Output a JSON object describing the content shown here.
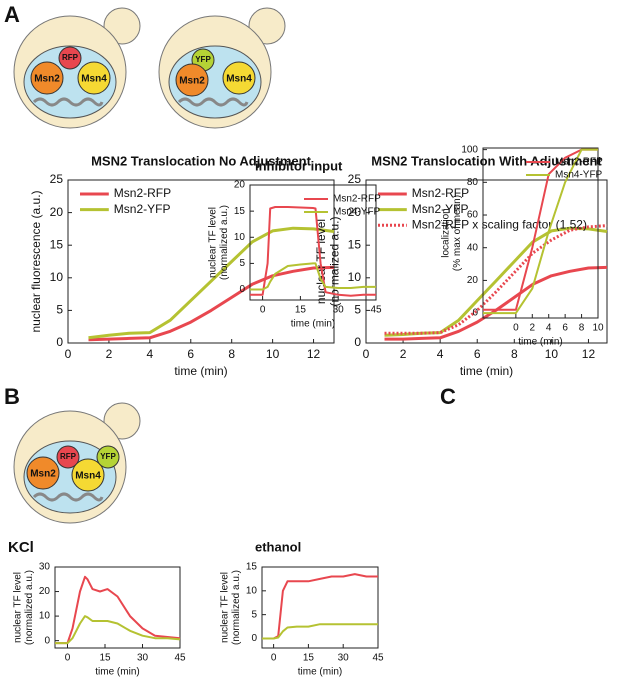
{
  "panels": [
    "A",
    "B",
    "C"
  ],
  "cells": [
    {
      "labels": [
        "RFP",
        "Msn2",
        "Msn4"
      ]
    },
    {
      "labels": [
        "YFP",
        "Msn2",
        "Msn4"
      ]
    },
    {
      "labels": [
        "RFP",
        "Msn2",
        "Msn4",
        "YFP"
      ]
    }
  ],
  "chart_data": [
    {
      "type": "line",
      "title": "MSN2 Translocation No Adjustment",
      "xlabel": "time (min)",
      "ylabel": [
        "nuclear fluorescence (a.u.)"
      ],
      "x": [
        1,
        2,
        3,
        4,
        5,
        6,
        7,
        8,
        9,
        10,
        11,
        12,
        13
      ],
      "xlim": [
        0,
        13
      ],
      "xticks": [
        0,
        2,
        4,
        6,
        8,
        10,
        12
      ],
      "ylim": [
        0,
        25
      ],
      "yticks": [
        0,
        5,
        10,
        15,
        20,
        25
      ],
      "legend": "upper left",
      "series": [
        {
          "name": "Msn2-RFP",
          "color": "#e8474f",
          "style": "solid",
          "values": [
            0.5,
            0.6,
            0.7,
            0.8,
            1.8,
            3.2,
            5,
            7,
            9,
            10.3,
            11,
            11.5,
            11.6
          ]
        },
        {
          "name": "Msn2-YFP",
          "color": "#b5c232",
          "style": "solid",
          "values": [
            0.8,
            1.2,
            1.5,
            1.6,
            3.5,
            6.5,
            9.5,
            12.5,
            15.5,
            17.2,
            17.6,
            17.5,
            17.1
          ]
        }
      ]
    },
    {
      "type": "line",
      "title": "MSN2 Translocation With Adjustment",
      "xlabel": "time (min)",
      "ylabel": [
        "nuclear TF level",
        "(normalized a.u.)"
      ],
      "x": [
        1,
        2,
        3,
        4,
        5,
        6,
        7,
        8,
        9,
        10,
        11,
        12,
        13
      ],
      "xlim": [
        0,
        13
      ],
      "xticks": [
        0,
        2,
        4,
        6,
        8,
        10,
        12
      ],
      "ylim": [
        0,
        25
      ],
      "yticks": [
        0,
        5,
        10,
        15,
        20,
        25
      ],
      "legend": "upper left",
      "series": [
        {
          "name": "Msn2-RFP",
          "color": "#e8474f",
          "style": "solid",
          "values": [
            0.6,
            0.6,
            0.7,
            0.8,
            1.8,
            3.2,
            5,
            7,
            9,
            10.3,
            11,
            11.5,
            11.6
          ]
        },
        {
          "name": "Msn2-YFP",
          "color": "#b5c232",
          "style": "solid",
          "values": [
            1.2,
            1.3,
            1.5,
            1.6,
            3.5,
            6.5,
            9.5,
            12.5,
            15.5,
            17.2,
            17.6,
            17.5,
            17.1
          ]
        },
        {
          "name": "Msn2-RFP x scaling factor (1.52)",
          "color": "#e8474f",
          "style": "dotted",
          "values": [
            1.5,
            1.5,
            1.5,
            1.6,
            2.8,
            5,
            7.8,
            10.8,
            13.8,
            15.8,
            17.3,
            17.8,
            18
          ]
        }
      ]
    },
    {
      "type": "line",
      "title": "inhibitor input",
      "xlabel": "time (min)",
      "ylabel": [
        "nuclear TF level",
        "(normalized a.u.)"
      ],
      "x": [
        -5,
        0,
        2,
        3,
        5,
        10,
        15,
        20,
        21,
        23,
        25,
        30,
        35,
        40,
        45
      ],
      "xlim": [
        -5,
        45
      ],
      "xticks": [
        0,
        15,
        30,
        45
      ],
      "ylim": [
        -2,
        20
      ],
      "yticks": [
        0,
        5,
        10,
        15,
        20
      ],
      "legend": "upper right",
      "series": [
        {
          "name": "Msn2-RFP",
          "color": "#e8474f",
          "style": "solid",
          "values": [
            -1,
            -1,
            5,
            15.5,
            15.8,
            15.8,
            15.7,
            15.6,
            15.5,
            5,
            -0.5,
            -1,
            -1.2,
            -1,
            -1
          ]
        },
        {
          "name": "Msn4-YFP",
          "color": "#b5c232",
          "style": "solid",
          "values": [
            0,
            0,
            0.5,
            1.5,
            3,
            4.5,
            4.8,
            5,
            5,
            2,
            0.5,
            0.3,
            0.3,
            0.5,
            0.5
          ]
        }
      ]
    },
    {
      "type": "line",
      "xlabel": "time (min)",
      "ylabel": [
        "localization",
        "(% max of mean)"
      ],
      "x": [
        -4,
        0,
        2,
        4,
        6,
        8,
        10
      ],
      "xlim": [
        -4,
        10
      ],
      "xticks": [
        0,
        2,
        4,
        6,
        8,
        10
      ],
      "ylim": [
        -3,
        101
      ],
      "yticks": [
        0,
        20,
        40,
        60,
        80,
        100
      ],
      "legend": "upper right",
      "series": [
        {
          "name": "Msn2-RFP",
          "color": "#e8474f",
          "style": "solid",
          "values": [
            2,
            2,
            40,
            85,
            95,
            100,
            100
          ]
        },
        {
          "name": "Msn4-YFP",
          "color": "#b5c232",
          "style": "solid",
          "values": [
            0,
            0,
            15,
            50,
            80,
            100,
            100
          ]
        }
      ]
    },
    {
      "type": "line",
      "title": "KCl",
      "xlabel": "time (min)",
      "ylabel": [
        "nuclear TF level",
        "(normalized a.u.)"
      ],
      "x": [
        -5,
        0,
        2,
        5,
        7,
        8,
        10,
        13,
        16,
        20,
        25,
        30,
        35,
        40,
        45
      ],
      "xlim": [
        -5,
        45
      ],
      "xticks": [
        0,
        15,
        30,
        45
      ],
      "ylim": [
        -3,
        30
      ],
      "yticks": [
        0,
        10,
        20,
        30
      ],
      "series": [
        {
          "color": "#e8474f",
          "style": "solid",
          "values": [
            -1,
            -1,
            5,
            20,
            26,
            25,
            21,
            20,
            21,
            18,
            10,
            5,
            2,
            1.5,
            1
          ]
        },
        {
          "color": "#b5c232",
          "style": "solid",
          "values": [
            -1,
            -1,
            1,
            7,
            10,
            9.5,
            8,
            8,
            8,
            7,
            4,
            2,
            1,
            1,
            0.5
          ]
        }
      ]
    },
    {
      "type": "line",
      "title": "ethanol",
      "xlabel": "time (min)",
      "ylabel": [
        "nuclear TF level",
        "(normalized a.u.)"
      ],
      "x": [
        -5,
        0,
        2,
        4,
        6,
        10,
        15,
        20,
        25,
        30,
        35,
        40,
        45
      ],
      "xlim": [
        -5,
        45
      ],
      "xticks": [
        0,
        15,
        30,
        45
      ],
      "ylim": [
        -2,
        15
      ],
      "yticks": [
        0,
        5,
        10,
        15
      ],
      "series": [
        {
          "color": "#e8474f",
          "style": "solid",
          "values": [
            0,
            0,
            0.5,
            10,
            12,
            12,
            12,
            12.5,
            13,
            13,
            13.5,
            13,
            13
          ]
        },
        {
          "color": "#b5c232",
          "style": "solid",
          "values": [
            0,
            0,
            0.2,
            1.5,
            2.3,
            2.5,
            2.5,
            3,
            3,
            3,
            3,
            3,
            3
          ]
        }
      ]
    }
  ]
}
